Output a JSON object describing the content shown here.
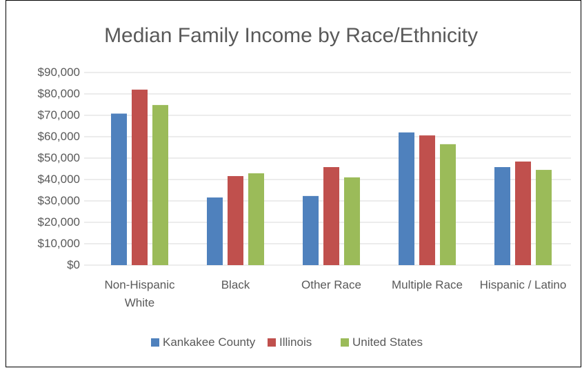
{
  "chart_data": {
    "type": "bar",
    "title": "Median Family Income by Race/Ethnicity",
    "categories": [
      "Non-Hispanic White",
      "Black",
      "Other Race",
      "Multiple Race",
      "Hispanic / Latino"
    ],
    "series": [
      {
        "name": "Kankakee County",
        "color": "#4f81bd",
        "values": [
          70800,
          31600,
          32300,
          62000,
          45800
        ]
      },
      {
        "name": "Illinois",
        "color": "#c0504d",
        "values": [
          82000,
          41600,
          45800,
          60600,
          48400
        ]
      },
      {
        "name": "United States",
        "color": "#9bbb59",
        "values": [
          74800,
          42900,
          41000,
          56500,
          44500
        ]
      }
    ],
    "ylim": [
      0,
      90000
    ],
    "yticks": [
      {
        "value": 0,
        "label": "$0"
      },
      {
        "value": 10000,
        "label": "$10,000"
      },
      {
        "value": 20000,
        "label": "$20,000"
      },
      {
        "value": 30000,
        "label": "$30,000"
      },
      {
        "value": 40000,
        "label": "$40,000"
      },
      {
        "value": 50000,
        "label": "$50,000"
      },
      {
        "value": 60000,
        "label": "$60,000"
      },
      {
        "value": 70000,
        "label": "$70,000"
      },
      {
        "value": 80000,
        "label": "$80,000"
      },
      {
        "value": 90000,
        "label": "$90,000"
      }
    ],
    "grid": true,
    "legend": "bottom"
  }
}
